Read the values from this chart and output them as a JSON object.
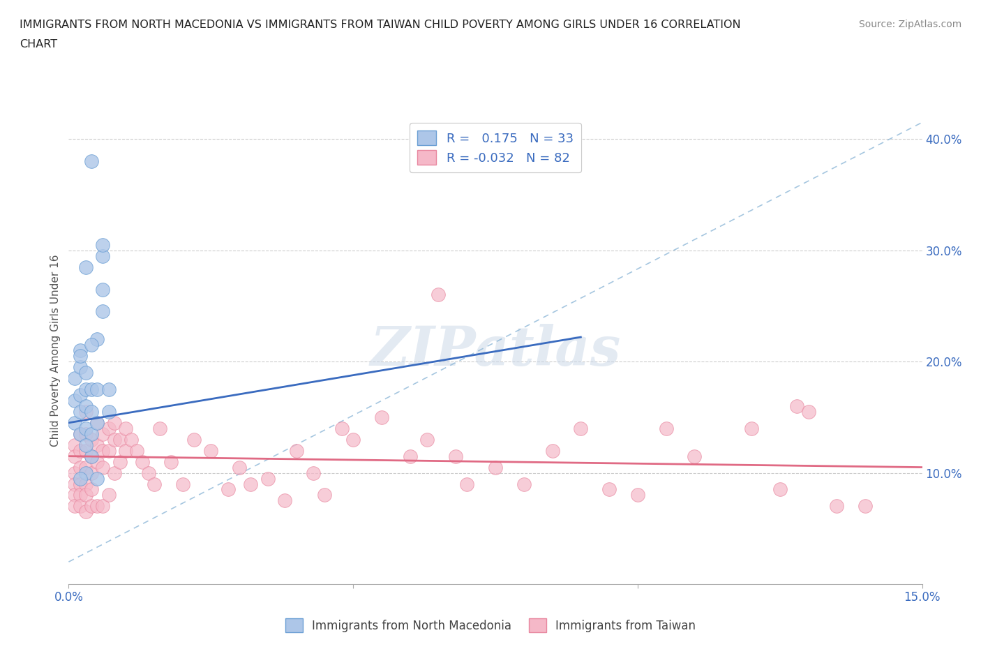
{
  "title_line1": "IMMIGRANTS FROM NORTH MACEDONIA VS IMMIGRANTS FROM TAIWAN CHILD POVERTY AMONG GIRLS UNDER 16 CORRELATION",
  "title_line2": "CHART",
  "source_text": "Source: ZipAtlas.com",
  "ylabel": "Child Poverty Among Girls Under 16",
  "xlim": [
    0.0,
    0.15
  ],
  "ylim": [
    0.0,
    0.42
  ],
  "ytick_positions": [
    0.1,
    0.2,
    0.3,
    0.4
  ],
  "ytick_labels": [
    "10.0%",
    "20.0%",
    "30.0%",
    "40.0%"
  ],
  "xtick_positions": [
    0.0,
    0.05,
    0.1,
    0.15
  ],
  "xtick_labels": [
    "0.0%",
    "",
    "",
    "15.0%"
  ],
  "watermark": "ZIPatlas",
  "color_blue": "#adc6e8",
  "color_pink": "#f5b8c8",
  "edge_blue": "#6b9fd4",
  "edge_pink": "#e8879f",
  "line_blue": "#3a6bbf",
  "line_pink": "#e06a84",
  "line_dashed_color": "#8fb8d8",
  "nm_x": [
    0.001,
    0.001,
    0.001,
    0.002,
    0.002,
    0.002,
    0.002,
    0.002,
    0.003,
    0.003,
    0.003,
    0.003,
    0.003,
    0.004,
    0.004,
    0.004,
    0.004,
    0.005,
    0.005,
    0.005,
    0.006,
    0.006,
    0.006,
    0.006,
    0.007,
    0.007,
    0.004,
    0.003,
    0.002,
    0.005,
    0.003,
    0.004,
    0.002
  ],
  "nm_y": [
    0.145,
    0.165,
    0.185,
    0.135,
    0.155,
    0.17,
    0.195,
    0.21,
    0.14,
    0.16,
    0.175,
    0.19,
    0.285,
    0.135,
    0.155,
    0.175,
    0.38,
    0.145,
    0.175,
    0.22,
    0.295,
    0.305,
    0.245,
    0.265,
    0.155,
    0.175,
    0.115,
    0.1,
    0.095,
    0.095,
    0.125,
    0.215,
    0.205
  ],
  "tw_x": [
    0.001,
    0.001,
    0.001,
    0.001,
    0.001,
    0.001,
    0.002,
    0.002,
    0.002,
    0.002,
    0.002,
    0.002,
    0.003,
    0.003,
    0.003,
    0.003,
    0.003,
    0.003,
    0.003,
    0.004,
    0.004,
    0.004,
    0.004,
    0.004,
    0.005,
    0.005,
    0.005,
    0.005,
    0.006,
    0.006,
    0.006,
    0.006,
    0.007,
    0.007,
    0.007,
    0.008,
    0.008,
    0.008,
    0.009,
    0.009,
    0.01,
    0.01,
    0.011,
    0.012,
    0.013,
    0.014,
    0.015,
    0.016,
    0.018,
    0.02,
    0.022,
    0.025,
    0.028,
    0.03,
    0.032,
    0.035,
    0.038,
    0.04,
    0.043,
    0.045,
    0.048,
    0.05,
    0.055,
    0.06,
    0.063,
    0.065,
    0.068,
    0.07,
    0.075,
    0.08,
    0.085,
    0.09,
    0.095,
    0.1,
    0.105,
    0.11,
    0.12,
    0.125,
    0.128,
    0.13,
    0.135,
    0.14
  ],
  "tw_y": [
    0.125,
    0.115,
    0.1,
    0.09,
    0.08,
    0.07,
    0.135,
    0.12,
    0.105,
    0.09,
    0.08,
    0.07,
    0.155,
    0.135,
    0.12,
    0.105,
    0.09,
    0.08,
    0.065,
    0.13,
    0.115,
    0.1,
    0.085,
    0.07,
    0.145,
    0.125,
    0.11,
    0.07,
    0.135,
    0.12,
    0.105,
    0.07,
    0.14,
    0.12,
    0.08,
    0.145,
    0.13,
    0.1,
    0.13,
    0.11,
    0.14,
    0.12,
    0.13,
    0.12,
    0.11,
    0.1,
    0.09,
    0.14,
    0.11,
    0.09,
    0.13,
    0.12,
    0.085,
    0.105,
    0.09,
    0.095,
    0.075,
    0.12,
    0.1,
    0.08,
    0.14,
    0.13,
    0.15,
    0.115,
    0.13,
    0.26,
    0.115,
    0.09,
    0.105,
    0.09,
    0.12,
    0.14,
    0.085,
    0.08,
    0.14,
    0.115,
    0.14,
    0.085,
    0.16,
    0.155,
    0.07,
    0.07
  ],
  "blue_line_x": [
    0.0,
    0.09
  ],
  "blue_line_y": [
    0.145,
    0.222
  ],
  "pink_line_x": [
    0.0,
    0.15
  ],
  "pink_line_y": [
    0.115,
    0.105
  ],
  "dashed_line_x": [
    0.0,
    0.15
  ],
  "dashed_line_y": [
    0.02,
    0.415
  ]
}
